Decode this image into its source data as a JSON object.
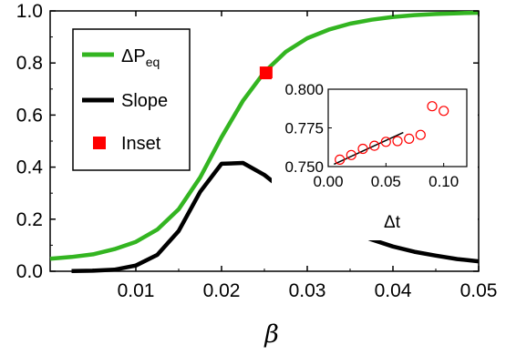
{
  "chart_data": {
    "type": "line",
    "xlabel": "β",
    "ylabel": "",
    "xlim": [
      0,
      0.05
    ],
    "ylim": [
      0,
      1.0
    ],
    "x_ticks": [
      "0.01",
      "0.02",
      "0.03",
      "0.04",
      "0.05"
    ],
    "y_ticks": [
      "0.0",
      "0.2",
      "0.4",
      "0.6",
      "0.8",
      "1.0"
    ],
    "legend": {
      "placement": "top-left",
      "entries": [
        {
          "label_main": "ΔP",
          "label_sub": "eq",
          "color": "#33b521",
          "marker": "line"
        },
        {
          "label_main": "Slope",
          "color": "#000000",
          "marker": "line"
        },
        {
          "label_main": "Inset",
          "color": "#ff0000",
          "marker": "square"
        }
      ]
    },
    "series": [
      {
        "color": "#33b521",
        "x": [
          0,
          0.0025,
          0.005,
          0.0075,
          0.01,
          0.0125,
          0.015,
          0.0175,
          0.02,
          0.0225,
          0.025,
          0.0275,
          0.03,
          0.0325,
          0.035,
          0.0375,
          0.04,
          0.0425,
          0.045,
          0.0475,
          0.05
        ],
        "y": [
          0.048,
          0.055,
          0.065,
          0.085,
          0.113,
          0.16,
          0.238,
          0.36,
          0.515,
          0.655,
          0.765,
          0.843,
          0.895,
          0.928,
          0.951,
          0.966,
          0.977,
          0.984,
          0.988,
          0.991,
          0.993
        ]
      },
      {
        "color": "#000000",
        "x": [
          0.0025,
          0.005,
          0.0075,
          0.01,
          0.0125,
          0.015,
          0.0175,
          0.02,
          0.0225,
          0.025,
          0.0275,
          0.03,
          0.0325,
          0.035,
          0.0375,
          0.04,
          0.0425,
          0.045,
          0.0475,
          0.05
        ],
        "y": [
          0.001,
          0.002,
          0.006,
          0.022,
          0.063,
          0.155,
          0.305,
          0.413,
          0.416,
          0.37,
          0.305,
          0.245,
          0.195,
          0.155,
          0.122,
          0.095,
          0.075,
          0.06,
          0.047,
          0.038
        ]
      }
    ],
    "highlight_point": {
      "x": 0.0252,
      "y": 0.762,
      "color": "#ff0000"
    },
    "inset": {
      "xlabel": "Δt",
      "xlim": [
        0,
        0.12
      ],
      "ylim": [
        0.75,
        0.8
      ],
      "x_ticks": [
        "0.00",
        "0.05",
        "0.10"
      ],
      "y_ticks": [
        "0.750",
        "0.775",
        "0.800"
      ],
      "points": {
        "color": "#ff0000",
        "x": [
          0.01,
          0.02,
          0.03,
          0.04,
          0.05,
          0.06,
          0.07,
          0.08,
          0.09,
          0.1
        ],
        "y": [
          0.7545,
          0.7575,
          0.7615,
          0.7635,
          0.766,
          0.7665,
          0.768,
          0.7705,
          0.789,
          0.786
        ]
      },
      "fit_line": {
        "color": "#000000",
        "x": [
          0.005,
          0.065
        ],
        "y": [
          0.7515,
          0.772
        ]
      }
    }
  }
}
